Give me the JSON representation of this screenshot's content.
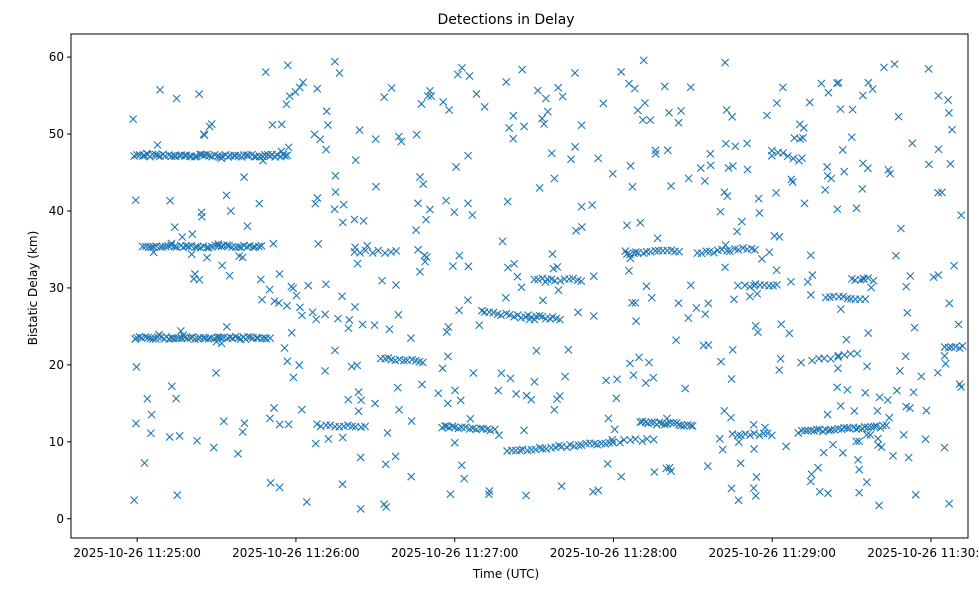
{
  "chart_data": {
    "type": "scatter",
    "title": "Detections in Delay",
    "xlabel": "Time (UTC)",
    "ylabel": "Bistatic Delay (km)",
    "marker": "x",
    "color": "#1f77b4",
    "grid": false,
    "legend": "none",
    "x_unit": "time HH:MM:SS on 2025-10-26",
    "xlim": [
      "11:24:35",
      "11:30:14"
    ],
    "ylim": [
      -2.5,
      63
    ],
    "x_ticks": [
      "2025-10-26 11:25:00",
      "2025-10-26 11:26:00",
      "2025-10-26 11:27:00",
      "2025-10-26 11:28:00",
      "2025-10-26 11:29:00",
      "2025-10-26 11:30:00"
    ],
    "y_ticks": [
      "0",
      "10",
      "20",
      "30",
      "40",
      "50",
      "60"
    ],
    "tracks": [
      {
        "start": "11:24:59",
        "end": "11:25:57",
        "y_start": 47.2,
        "y_end": 47.2,
        "count": 60
      },
      {
        "start": "11:24:59",
        "end": "11:25:50",
        "y_start": 23.5,
        "y_end": 23.5,
        "count": 52
      },
      {
        "start": "11:25:02",
        "end": "11:25:47",
        "y_start": 35.4,
        "y_end": 35.4,
        "count": 42
      },
      {
        "start": "11:25:47",
        "end": "11:26:30",
        "y_start": 28.5,
        "y_end": 25.0,
        "count": 10
      },
      {
        "start": "11:26:22",
        "end": "11:26:38",
        "y_start": 34.7,
        "y_end": 34.7,
        "count": 8
      },
      {
        "start": "11:26:08",
        "end": "11:26:26",
        "y_start": 12.2,
        "y_end": 12.0,
        "count": 12
      },
      {
        "start": "11:26:32",
        "end": "11:26:48",
        "y_start": 20.8,
        "y_end": 20.4,
        "count": 12
      },
      {
        "start": "11:26:55",
        "end": "11:27:15",
        "y_start": 12.0,
        "y_end": 11.6,
        "count": 16
      },
      {
        "start": "11:27:10",
        "end": "11:27:30",
        "y_start": 27.0,
        "y_end": 26.0,
        "count": 14
      },
      {
        "start": "11:27:30",
        "end": "11:27:48",
        "y_start": 31.2,
        "y_end": 31.0,
        "count": 12
      },
      {
        "start": "11:27:28",
        "end": "11:27:40",
        "y_start": 26.4,
        "y_end": 26.0,
        "count": 10
      },
      {
        "start": "11:27:20",
        "end": "11:28:00",
        "y_start": 8.8,
        "y_end": 9.9,
        "count": 28
      },
      {
        "start": "11:28:00",
        "end": "11:28:15",
        "y_start": 10.0,
        "y_end": 10.3,
        "count": 8
      },
      {
        "start": "11:28:10",
        "end": "11:28:30",
        "y_start": 12.5,
        "y_end": 12.2,
        "count": 20
      },
      {
        "start": "11:28:05",
        "end": "11:28:25",
        "y_start": 34.5,
        "y_end": 34.8,
        "count": 14
      },
      {
        "start": "11:28:32",
        "end": "11:28:52",
        "y_start": 34.5,
        "y_end": 35.2,
        "count": 14
      },
      {
        "start": "11:28:45",
        "end": "11:29:00",
        "y_start": 11.0,
        "y_end": 11.0,
        "count": 10
      },
      {
        "start": "11:28:50",
        "end": "11:29:02",
        "y_start": 30.3,
        "y_end": 30.3,
        "count": 8
      },
      {
        "start": "11:29:00",
        "end": "11:29:10",
        "y_start": 48.0,
        "y_end": 46.5,
        "count": 6
      },
      {
        "start": "11:29:10",
        "end": "11:29:43",
        "y_start": 11.3,
        "y_end": 12.0,
        "count": 30
      },
      {
        "start": "11:29:20",
        "end": "11:29:35",
        "y_start": 28.9,
        "y_end": 28.5,
        "count": 10
      },
      {
        "start": "11:29:30",
        "end": "11:29:38",
        "y_start": 31.1,
        "y_end": 31.1,
        "count": 6
      },
      {
        "start": "11:29:15",
        "end": "11:29:32",
        "y_start": 20.5,
        "y_end": 21.5,
        "count": 8
      },
      {
        "start": "11:30:05",
        "end": "11:30:12",
        "y_start": 22.3,
        "y_end": 22.3,
        "count": 6
      }
    ],
    "scattered_detections": {
      "count": 520,
      "x_range": [
        "11:24:58",
        "11:30:12"
      ],
      "y_range": [
        1.0,
        60.0
      ]
    }
  }
}
